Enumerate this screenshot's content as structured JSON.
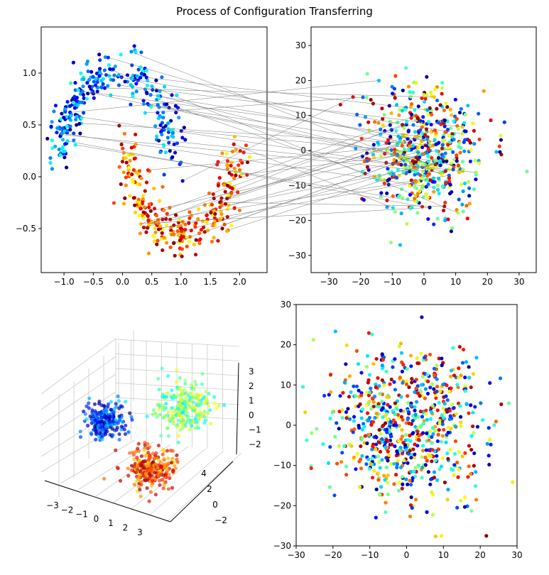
{
  "chart_data": [
    {
      "type": "scatter",
      "name": "input-manifold",
      "title": "Process of Configuration Transferring",
      "xlim": [
        -1.39,
        2.47
      ],
      "ylim": [
        -0.925,
        1.445
      ],
      "xticks": [
        "−1.0",
        "−0.5",
        "0.0",
        "0.5",
        "1.0",
        "1.5",
        "2.0"
      ],
      "xtick_values": [
        -1,
        -0.5,
        0,
        0.5,
        1,
        1.5,
        2
      ],
      "yticks": [
        "−0.5",
        "0.0",
        "0.5",
        "1.0"
      ],
      "ytick_values": [
        -0.5,
        0,
        0.5,
        1
      ],
      "series": [
        {
          "name": "upper-moon",
          "n": 300,
          "colormap": "jet",
          "color_range": [
            0,
            0.42
          ]
        },
        {
          "name": "lower-moon",
          "n": 300,
          "colormap": "jet",
          "color_range": [
            0.6,
            1
          ]
        }
      ]
    },
    {
      "type": "scatter",
      "name": "transferred-config",
      "xlim": [
        -35.6,
        35.4
      ],
      "ylim": [
        -34.9,
        35.3
      ],
      "xticks": [
        "−30",
        "−20",
        "−10",
        "0",
        "10",
        "20",
        "30"
      ],
      "xtick_values": [
        -30,
        -20,
        -10,
        0,
        10,
        20,
        30
      ],
      "yticks": [
        "−30",
        "−20",
        "−10",
        "0",
        "10",
        "20",
        "30"
      ],
      "ytick_values": [
        -30,
        -20,
        -10,
        0,
        10,
        20,
        30
      ],
      "n": 600,
      "spread": 9,
      "connections": 45
    },
    {
      "type": "scatter",
      "name": "3d-clusters",
      "projection": "3d",
      "xticks": [
        "−3",
        "−2",
        "−1",
        "0",
        "1",
        "2",
        "3"
      ],
      "yticks": [
        "−2",
        "0",
        "2",
        "4"
      ],
      "zticks": [
        "−2",
        "−1",
        "0",
        "1",
        "2",
        "3"
      ],
      "clusters": [
        {
          "name": "blue",
          "color_range": [
            0,
            0.35
          ]
        },
        {
          "name": "green-yellow",
          "color_range": [
            0.35,
            0.65
          ]
        },
        {
          "name": "red-orange",
          "color_range": [
            0.65,
            1
          ]
        }
      ],
      "n_per_cluster": 250
    },
    {
      "type": "scatter",
      "name": "final-config",
      "xlim": [
        -30,
        30
      ],
      "ylim": [
        -30,
        30
      ],
      "xticks": [
        "−30",
        "−20",
        "−10",
        "0",
        "10",
        "20",
        "30"
      ],
      "xtick_values": [
        -30,
        -20,
        -10,
        0,
        10,
        20,
        30
      ],
      "yticks": [
        "−30",
        "−20",
        "−10",
        "0",
        "10",
        "20",
        "30"
      ],
      "ytick_values": [
        -30,
        -20,
        -10,
        0,
        10,
        20,
        30
      ],
      "n": 750,
      "spread": 10
    }
  ],
  "title": "Process of Configuration Transferring"
}
